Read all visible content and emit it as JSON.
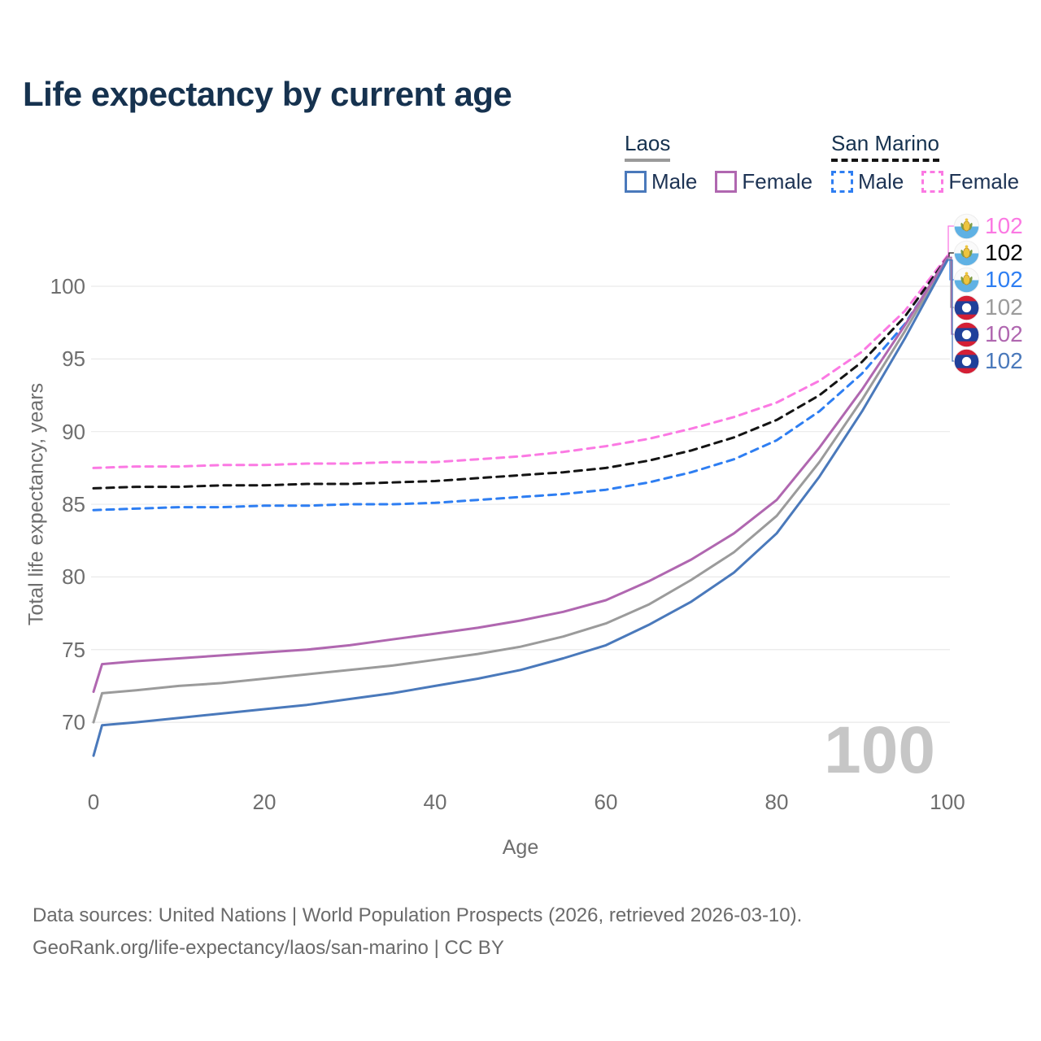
{
  "title": "Life expectancy by current age",
  "legend": {
    "groups": [
      {
        "label": "Laos",
        "line_style": "solid",
        "underline_color": "#9a9a9a",
        "items": [
          {
            "label": "Male",
            "color": "#4a79bb"
          },
          {
            "label": "Female",
            "color": "#b067b0"
          }
        ]
      },
      {
        "label": "San Marino",
        "line_style": "dashed",
        "underline_color": "#141414",
        "items": [
          {
            "label": "Male",
            "color": "#2e7ef2"
          },
          {
            "label": "Female",
            "color": "#fb79e3"
          }
        ]
      }
    ]
  },
  "watermark": {
    "value": "100"
  },
  "footer": {
    "line1": "Data sources: United Nations | World Population Prospects (2026, retrieved 2026-03-10).",
    "line2": "GeoRank.org/life-expectancy/laos/san-marino | CC BY"
  },
  "colors": {
    "title_text": "#16324f",
    "tick_text": "#6e6e6e",
    "gridline": "#e9e9e9",
    "watermark_text": "#c6c6c6",
    "footer_text": "#6a6a6a"
  },
  "chart_data": {
    "type": "line",
    "title": "Life expectancy by current age",
    "xlabel": "Age",
    "ylabel": "Total life expectancy, years",
    "x_ticks": [
      0,
      20,
      40,
      60,
      80,
      100
    ],
    "y_ticks": [
      70,
      75,
      80,
      85,
      90,
      95,
      100
    ],
    "xlim": [
      0,
      100
    ],
    "grid": "horizontal-only",
    "legend_position": "top-right",
    "series": [
      {
        "name": "San Marino Female",
        "country": "San Marino",
        "sex": "female",
        "line_style": "dashed",
        "color": "#fb79e3",
        "end_label": {
          "value": "102",
          "row": 0,
          "flag": "san-marino",
          "text_color": "#fb79e3"
        },
        "points": [
          [
            0,
            87.5
          ],
          [
            5,
            87.6
          ],
          [
            10,
            87.6
          ],
          [
            15,
            87.7
          ],
          [
            20,
            87.7
          ],
          [
            25,
            87.8
          ],
          [
            30,
            87.8
          ],
          [
            35,
            87.9
          ],
          [
            40,
            87.9
          ],
          [
            45,
            88.1
          ],
          [
            50,
            88.3
          ],
          [
            55,
            88.6
          ],
          [
            60,
            89.0
          ],
          [
            65,
            89.5
          ],
          [
            70,
            90.2
          ],
          [
            75,
            91.0
          ],
          [
            80,
            92.0
          ],
          [
            85,
            93.5
          ],
          [
            90,
            95.5
          ],
          [
            95,
            98.3
          ],
          [
            100,
            102.1
          ]
        ]
      },
      {
        "name": "San Marino (both sexes)",
        "country": "San Marino",
        "sex": "both",
        "line_style": "dashed",
        "color": "#141414",
        "end_label": {
          "value": "102",
          "row": 1,
          "flag": "san-marino",
          "text_color": "#000000"
        },
        "points": [
          [
            0,
            86.1
          ],
          [
            5,
            86.2
          ],
          [
            10,
            86.2
          ],
          [
            15,
            86.3
          ],
          [
            20,
            86.3
          ],
          [
            25,
            86.4
          ],
          [
            30,
            86.4
          ],
          [
            35,
            86.5
          ],
          [
            40,
            86.6
          ],
          [
            45,
            86.8
          ],
          [
            50,
            87.0
          ],
          [
            55,
            87.2
          ],
          [
            60,
            87.5
          ],
          [
            65,
            88.0
          ],
          [
            70,
            88.7
          ],
          [
            75,
            89.6
          ],
          [
            80,
            90.8
          ],
          [
            85,
            92.5
          ],
          [
            90,
            94.8
          ],
          [
            95,
            97.9
          ],
          [
            100,
            102.0
          ]
        ]
      },
      {
        "name": "San Marino Male",
        "country": "San Marino",
        "sex": "male",
        "line_style": "dashed",
        "color": "#2e7ef2",
        "end_label": {
          "value": "102",
          "row": 2,
          "flag": "san-marino",
          "text_color": "#2e7ef2"
        },
        "points": [
          [
            0,
            84.6
          ],
          [
            5,
            84.7
          ],
          [
            10,
            84.8
          ],
          [
            15,
            84.8
          ],
          [
            20,
            84.9
          ],
          [
            25,
            84.9
          ],
          [
            30,
            85.0
          ],
          [
            35,
            85.0
          ],
          [
            40,
            85.1
          ],
          [
            45,
            85.3
          ],
          [
            50,
            85.5
          ],
          [
            55,
            85.7
          ],
          [
            60,
            86.0
          ],
          [
            65,
            86.5
          ],
          [
            70,
            87.2
          ],
          [
            75,
            88.1
          ],
          [
            80,
            89.4
          ],
          [
            85,
            91.4
          ],
          [
            90,
            94.0
          ],
          [
            95,
            97.4
          ],
          [
            100,
            101.9
          ]
        ]
      },
      {
        "name": "Laos (both sexes)",
        "country": "Laos",
        "sex": "both",
        "line_style": "solid",
        "color": "#9b9b9b",
        "end_label": {
          "value": "102",
          "row": 3,
          "flag": "laos",
          "text_color": "#9b9b9b"
        },
        "points": [
          [
            0,
            70.0
          ],
          [
            1,
            72.0
          ],
          [
            5,
            72.2
          ],
          [
            10,
            72.5
          ],
          [
            15,
            72.7
          ],
          [
            20,
            73.0
          ],
          [
            25,
            73.3
          ],
          [
            30,
            73.6
          ],
          [
            35,
            73.9
          ],
          [
            40,
            74.3
          ],
          [
            45,
            74.7
          ],
          [
            50,
            75.2
          ],
          [
            55,
            75.9
          ],
          [
            60,
            76.8
          ],
          [
            65,
            78.1
          ],
          [
            70,
            79.8
          ],
          [
            75,
            81.7
          ],
          [
            80,
            84.2
          ],
          [
            85,
            87.9
          ],
          [
            90,
            92.2
          ],
          [
            95,
            96.9
          ],
          [
            100,
            101.9
          ]
        ]
      },
      {
        "name": "Laos Female",
        "country": "Laos",
        "sex": "female",
        "line_style": "solid",
        "color": "#b067b0",
        "end_label": {
          "value": "102",
          "row": 4,
          "flag": "laos",
          "text_color": "#b067b0"
        },
        "points": [
          [
            0,
            72.1
          ],
          [
            1,
            74.0
          ],
          [
            5,
            74.2
          ],
          [
            10,
            74.4
          ],
          [
            15,
            74.6
          ],
          [
            20,
            74.8
          ],
          [
            25,
            75.0
          ],
          [
            30,
            75.3
          ],
          [
            35,
            75.7
          ],
          [
            40,
            76.1
          ],
          [
            45,
            76.5
          ],
          [
            50,
            77.0
          ],
          [
            55,
            77.6
          ],
          [
            60,
            78.4
          ],
          [
            65,
            79.7
          ],
          [
            70,
            81.2
          ],
          [
            75,
            83.0
          ],
          [
            80,
            85.3
          ],
          [
            85,
            88.9
          ],
          [
            90,
            92.9
          ],
          [
            95,
            97.3
          ],
          [
            100,
            102.0
          ]
        ]
      },
      {
        "name": "Laos Male",
        "country": "Laos",
        "sex": "male",
        "line_style": "solid",
        "color": "#4a79bb",
        "end_label": {
          "value": "102",
          "row": 5,
          "flag": "laos",
          "text_color": "#4a79bb"
        },
        "points": [
          [
            0,
            67.7
          ],
          [
            1,
            69.8
          ],
          [
            5,
            70.0
          ],
          [
            10,
            70.3
          ],
          [
            15,
            70.6
          ],
          [
            20,
            70.9
          ],
          [
            25,
            71.2
          ],
          [
            30,
            71.6
          ],
          [
            35,
            72.0
          ],
          [
            40,
            72.5
          ],
          [
            45,
            73.0
          ],
          [
            50,
            73.6
          ],
          [
            55,
            74.4
          ],
          [
            60,
            75.3
          ],
          [
            65,
            76.7
          ],
          [
            70,
            78.3
          ],
          [
            75,
            80.3
          ],
          [
            80,
            83.0
          ],
          [
            85,
            86.9
          ],
          [
            90,
            91.4
          ],
          [
            95,
            96.4
          ],
          [
            100,
            101.8
          ]
        ]
      }
    ]
  }
}
